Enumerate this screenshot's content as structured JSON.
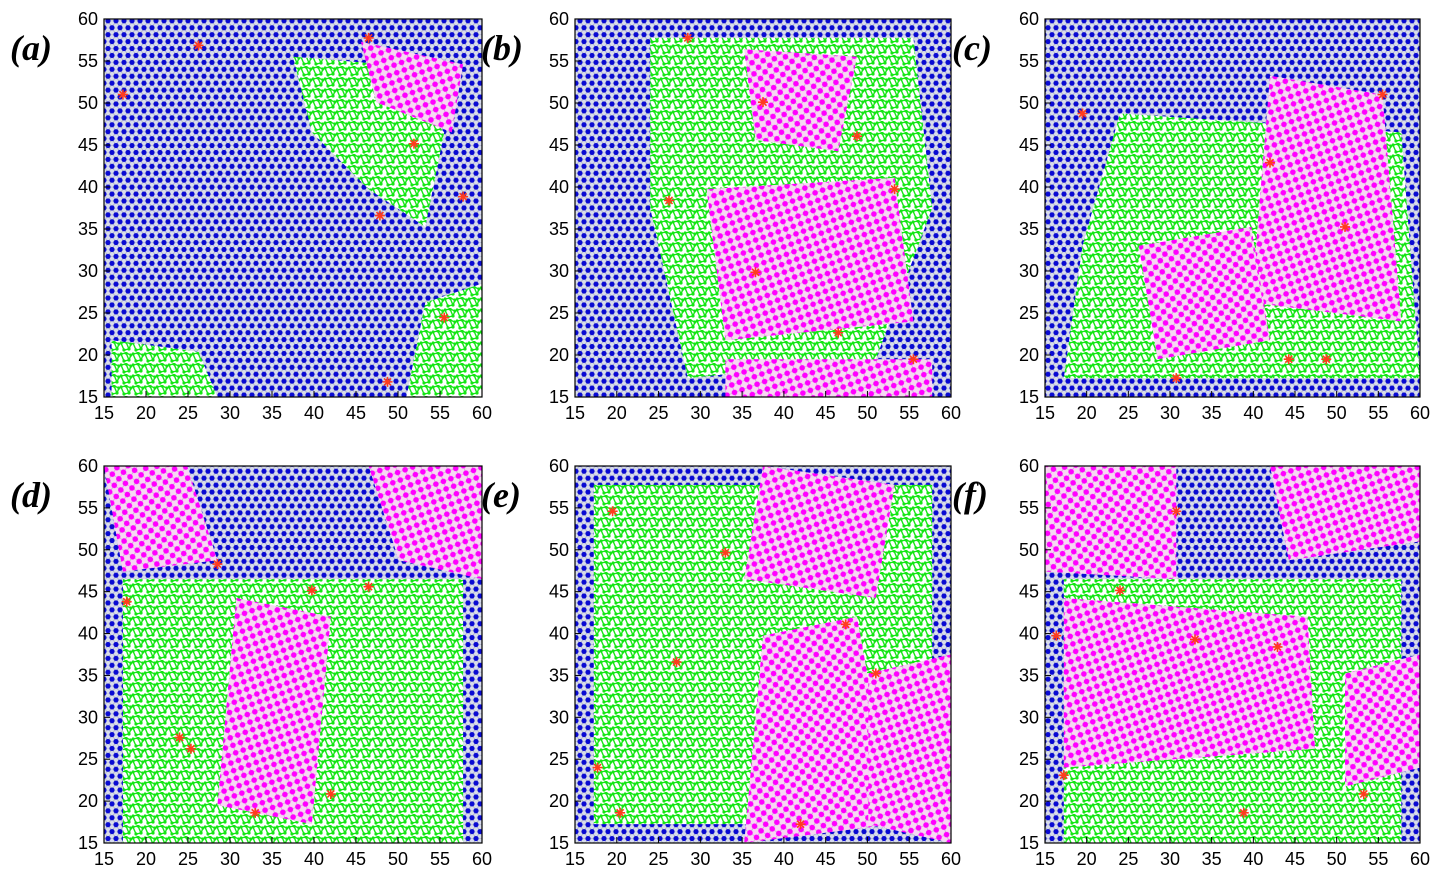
{
  "figure": {
    "colors": {
      "hexagonal": "#0a0ad2",
      "square": "#ff00ff",
      "disordered": "#14e614",
      "defect": "#ff3c1e",
      "bond": "#9da3b8"
    },
    "panels": [
      {
        "label": "(a)",
        "xlim": [
          15,
          60
        ],
        "ylim": [
          15,
          60
        ],
        "xticks": [
          "15",
          "20",
          "25",
          "30",
          "35",
          "40",
          "45",
          "50",
          "55",
          "60"
        ],
        "yticks": [
          "15",
          "20",
          "25",
          "30",
          "35",
          "40",
          "45",
          "50",
          "55",
          "60"
        ]
      },
      {
        "label": "(b)",
        "xlim": [
          15,
          60
        ],
        "ylim": [
          15,
          60
        ],
        "xticks": [
          "15",
          "20",
          "25",
          "30",
          "35",
          "40",
          "45",
          "50",
          "55",
          "60"
        ],
        "yticks": [
          "15",
          "20",
          "25",
          "30",
          "35",
          "40",
          "45",
          "50",
          "55",
          "60"
        ]
      },
      {
        "label": "(c)",
        "xlim": [
          15,
          60
        ],
        "ylim": [
          15,
          60
        ],
        "xticks": [
          "15",
          "20",
          "25",
          "30",
          "35",
          "40",
          "45",
          "50",
          "55",
          "60"
        ],
        "yticks": [
          "15",
          "20",
          "25",
          "30",
          "35",
          "40",
          "45",
          "50",
          "55",
          "60"
        ]
      },
      {
        "label": "(d)",
        "xlim": [
          15,
          60
        ],
        "ylim": [
          15,
          60
        ],
        "xticks": [
          "15",
          "20",
          "25",
          "30",
          "35",
          "40",
          "45",
          "50",
          "55",
          "60"
        ],
        "yticks": [
          "15",
          "20",
          "25",
          "30",
          "35",
          "40",
          "45",
          "50",
          "55",
          "60"
        ]
      },
      {
        "label": "(e)",
        "xlim": [
          15,
          60
        ],
        "ylim": [
          15,
          60
        ],
        "xticks": [
          "15",
          "20",
          "25",
          "30",
          "35",
          "40",
          "45",
          "50",
          "55",
          "60"
        ],
        "yticks": [
          "15",
          "20",
          "25",
          "30",
          "35",
          "40",
          "45",
          "50",
          "55",
          "60"
        ]
      },
      {
        "label": "(f)",
        "xlim": [
          15,
          60
        ],
        "ylim": [
          15,
          60
        ],
        "xticks": [
          "15",
          "20",
          "25",
          "30",
          "35",
          "40",
          "45",
          "50",
          "55",
          "60"
        ],
        "yticks": [
          "15",
          "20",
          "25",
          "30",
          "35",
          "40",
          "45",
          "50",
          "55",
          "60"
        ]
      }
    ]
  }
}
